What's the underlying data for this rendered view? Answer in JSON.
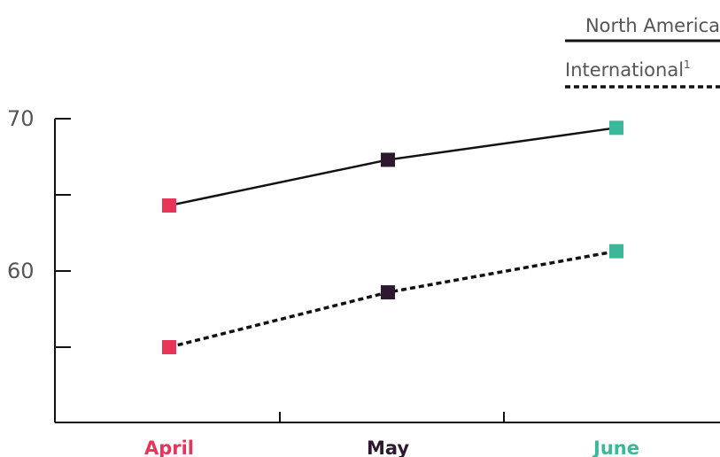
{
  "chart_data": {
    "type": "line",
    "categories": [
      "April",
      "May",
      "June"
    ],
    "category_colors": [
      "#e8335a",
      "#2d1830",
      "#3bb89a"
    ],
    "y_ticks": [
      60,
      70
    ],
    "ylim": [
      50,
      72
    ],
    "grid": false,
    "legend_position": "top-right",
    "series": [
      {
        "name": "North America",
        "values": [
          64.3,
          67.3,
          69.4
        ],
        "line_style": "solid",
        "line_color": "#111111"
      },
      {
        "name": "International",
        "name_superscript": "1",
        "values": [
          55.0,
          58.6,
          61.3
        ],
        "line_style": "dashed",
        "line_color": "#111111"
      }
    ]
  }
}
